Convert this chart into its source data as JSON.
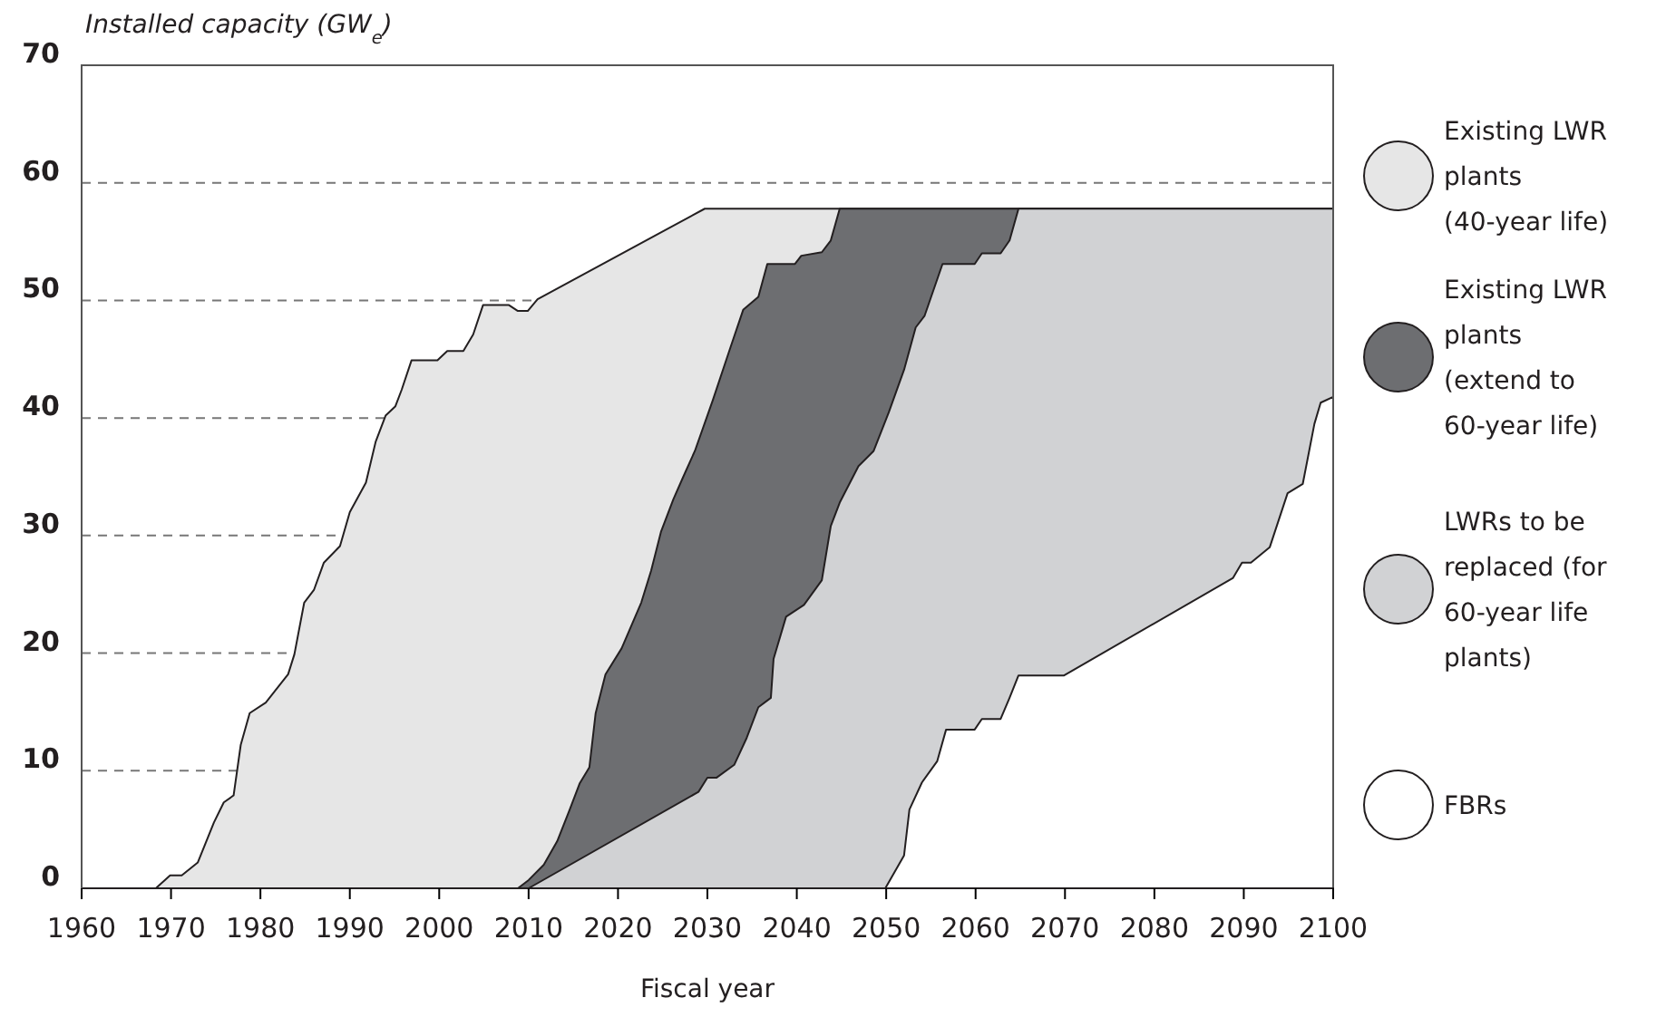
{
  "chart_data": {
    "type": "area",
    "ylabel": "Installed capacity (GW$_{e}$)",
    "xlabel": "Fiscal year",
    "xlim": [
      1960,
      2100
    ],
    "xticks": [
      1960,
      1970,
      1980,
      1990,
      2000,
      2010,
      2020,
      2030,
      2040,
      2050,
      2060,
      2070,
      2080,
      2090,
      2100
    ],
    "ylim": [
      0,
      70
    ],
    "yticks": [
      0,
      10,
      20,
      30,
      40,
      50,
      60,
      70
    ],
    "grid": "y",
    "legend": "right",
    "series": [
      {
        "name": "Existing LWR plants (40-year life)",
        "color": "#e6e6e6",
        "x": [
          1960,
          1968.3,
          1969.9,
          1971.2,
          1973,
          1974.8,
          1975.9,
          1977,
          1977.8,
          1978.8,
          1980.6,
          1983.1,
          1983.8,
          1984.9,
          1986,
          1987.1,
          1988.9,
          1990,
          1991.8,
          1992.9,
          1994,
          1995.1,
          1995.8,
          1996.9,
          1999.8,
          2000.9,
          2002.7,
          2003.8,
          2004.9,
          2007.8,
          2008.8,
          2009.9,
          2011,
          2029.7,
          2100
        ],
        "values": [
          0,
          0,
          1.1,
          1.1,
          2.2,
          5.6,
          7.3,
          7.9,
          12.2,
          14.9,
          15.8,
          18.2,
          19.9,
          24.3,
          25.4,
          27.7,
          29.1,
          32,
          34.5,
          38,
          40.2,
          41,
          42.4,
          44.9,
          44.9,
          45.7,
          45.7,
          47.1,
          49.6,
          49.6,
          49.1,
          49.1,
          50.1,
          57.8,
          57.8
        ]
      },
      {
        "name": "Existing LWR plants (extend to 60-year life)",
        "color": "#6d6e71",
        "x": [
          2008.8,
          2010,
          2011.7,
          2013.2,
          2014.6,
          2015.7,
          2016.8,
          2017.5,
          2018.6,
          2020.4,
          2022.6,
          2023.7,
          2024.8,
          2026.2,
          2027.3,
          2028.6,
          2030.6,
          2032.4,
          2034,
          2035.7,
          2036.7,
          2039.8,
          2040.5,
          2042.8,
          2043.8,
          2044.8,
          2100
        ],
        "values": [
          0,
          0.7,
          2,
          4,
          6.7,
          8.9,
          10.3,
          14.9,
          18.2,
          20.4,
          24.3,
          27,
          30.3,
          33.1,
          35,
          37.2,
          41.5,
          45.6,
          49.2,
          50.3,
          53.1,
          53.1,
          53.8,
          54.1,
          55.1,
          57.8,
          57.8
        ]
      },
      {
        "name": "LWRs to be replaced (for 60-year life plants)",
        "color": "#d1d2d4",
        "x": [
          2010,
          2029,
          2030,
          2031,
          2033,
          2034.4,
          2035.7,
          2037.1,
          2037.4,
          2038.8,
          2040.8,
          2042.8,
          2043.8,
          2044.8,
          2046.9,
          2048.6,
          2050.3,
          2052,
          2053.3,
          2054.3,
          2056.3,
          2059.9,
          2060.7,
          2062.8,
          2063.8,
          2064.8,
          2100
        ],
        "values": [
          0,
          8.2,
          9.4,
          9.4,
          10.5,
          12.8,
          15.4,
          16.2,
          19.5,
          23.1,
          24.1,
          26.2,
          30.8,
          32.8,
          35.9,
          37.2,
          40.5,
          44.1,
          47.7,
          48.7,
          53.1,
          53.1,
          54,
          54,
          55.1,
          57.8,
          57.8
        ]
      },
      {
        "name": "FBRs",
        "color": "#ffffff",
        "x": [
          2049.9,
          2052,
          2052.6,
          2054,
          2055.7,
          2056.7,
          2059.9,
          2060.7,
          2062.8,
          2063.8,
          2064.8,
          2069.9,
          2088.8,
          2089.8,
          2090.8,
          2092.9,
          2094.9,
          2096.6,
          2097.9,
          2098.6,
          2100
        ],
        "values": [
          0,
          2.8,
          6.7,
          9,
          10.8,
          13.5,
          13.5,
          14.4,
          14.4,
          16.2,
          18.1,
          18.1,
          26.4,
          27.7,
          27.7,
          29,
          33.6,
          34.4,
          39.5,
          41.3,
          41.8
        ]
      }
    ]
  }
}
